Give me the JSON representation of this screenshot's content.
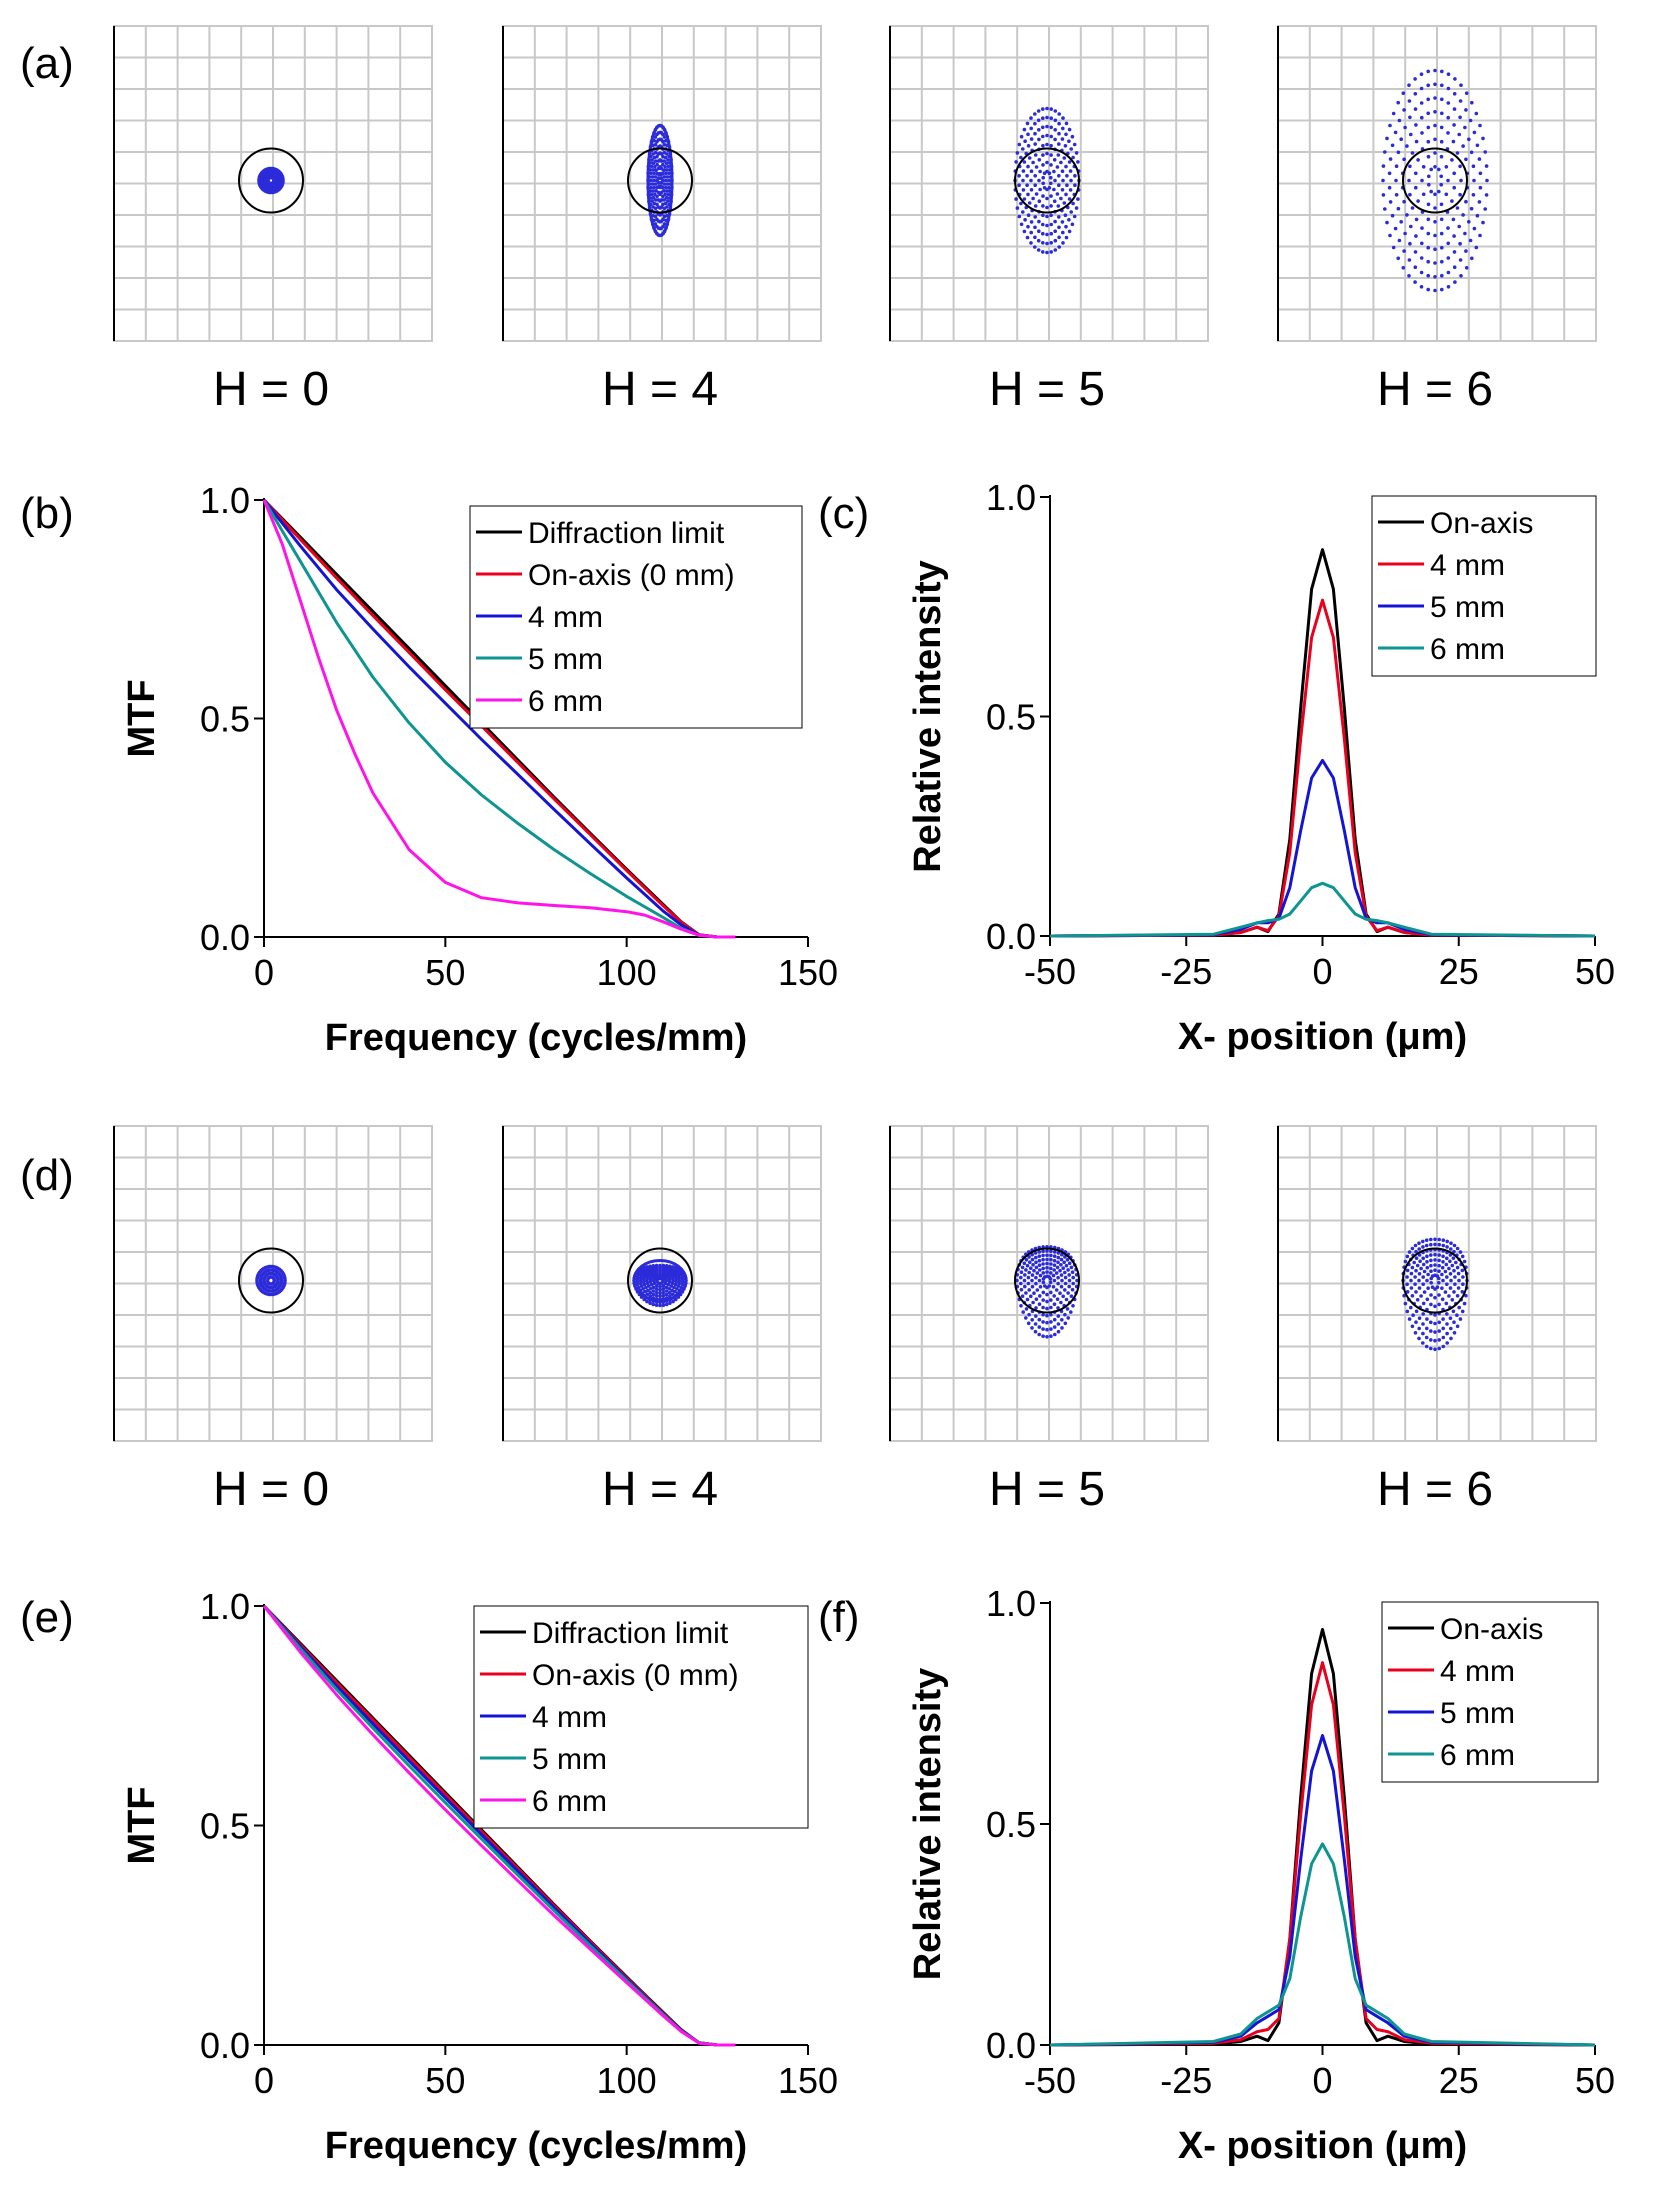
{
  "spot_sets": [
    {
      "panel": "(a)",
      "labels": [
        "H = 0",
        "H = 4",
        "H = 5",
        "H = 6"
      ],
      "spot_color": "#2b2bd9",
      "airy_color": "#000000"
    },
    {
      "panel": "(d)",
      "labels": [
        "H = 0",
        "H = 4",
        "H = 5",
        "H = 6"
      ],
      "spot_color": "#2b2bd9",
      "airy_color": "#000000"
    }
  ],
  "chart_data": [
    {
      "panel": "(b)",
      "type": "line",
      "xlabel": "Frequency (cycles/mm)",
      "ylabel": "MTF",
      "xlim": [
        0,
        150
      ],
      "ylim": [
        0,
        1
      ],
      "xticks": [
        "0",
        "50",
        "100",
        "150"
      ],
      "yticks": [
        "0.0",
        "0.5",
        "1.0"
      ],
      "xtick_values": [
        0,
        50,
        100,
        150
      ],
      "ytick_values": [
        0,
        0.5,
        1
      ],
      "legend_position": "top-right",
      "series": [
        {
          "name": "Diffraction limit",
          "color": "#000000",
          "x": [
            0,
            10,
            20,
            30,
            40,
            50,
            60,
            70,
            80,
            90,
            100,
            110,
            115,
            120,
            125,
            130
          ],
          "y": [
            1.0,
            0.915,
            0.83,
            0.745,
            0.66,
            0.575,
            0.49,
            0.405,
            0.32,
            0.237,
            0.155,
            0.075,
            0.035,
            0.005,
            0,
            0
          ]
        },
        {
          "name": "On-axis (0 mm)",
          "color": "#e8001c",
          "x": [
            0,
            10,
            20,
            30,
            40,
            50,
            60,
            70,
            80,
            90,
            100,
            110,
            115,
            120,
            125,
            130
          ],
          "y": [
            1.0,
            0.91,
            0.822,
            0.736,
            0.651,
            0.566,
            0.483,
            0.399,
            0.316,
            0.234,
            0.152,
            0.072,
            0.034,
            0.005,
            0,
            0
          ]
        },
        {
          "name": "4 mm",
          "color": "#1414d4",
          "x": [
            0,
            10,
            20,
            30,
            40,
            50,
            60,
            70,
            80,
            90,
            100,
            110,
            115,
            120,
            125,
            130
          ],
          "y": [
            1.0,
            0.895,
            0.795,
            0.705,
            0.618,
            0.535,
            0.452,
            0.372,
            0.292,
            0.213,
            0.135,
            0.06,
            0.028,
            0.004,
            0,
            0
          ]
        },
        {
          "name": "5 mm",
          "color": "#0e9491",
          "x": [
            0,
            5,
            10,
            20,
            30,
            40,
            50,
            60,
            70,
            80,
            90,
            100,
            110,
            115,
            120,
            125,
            130
          ],
          "y": [
            1.0,
            0.93,
            0.86,
            0.72,
            0.595,
            0.49,
            0.4,
            0.325,
            0.26,
            0.2,
            0.145,
            0.093,
            0.045,
            0.02,
            0.004,
            0,
            0
          ]
        },
        {
          "name": "6 mm",
          "color": "#ff14e8",
          "x": [
            0,
            5,
            10,
            15,
            20,
            25,
            30,
            40,
            50,
            60,
            70,
            80,
            90,
            100,
            105,
            110,
            115,
            120,
            125,
            130
          ],
          "y": [
            1.0,
            0.9,
            0.77,
            0.64,
            0.52,
            0.42,
            0.33,
            0.2,
            0.125,
            0.09,
            0.078,
            0.072,
            0.067,
            0.058,
            0.05,
            0.035,
            0.018,
            0.004,
            0,
            0
          ]
        }
      ]
    },
    {
      "panel": "(c)",
      "type": "line",
      "xlabel": "X- position (μm)",
      "ylabel": "Relative intensity",
      "xlim": [
        -50,
        50
      ],
      "ylim": [
        0,
        1
      ],
      "xticks": [
        "-50",
        "-25",
        "0",
        "25",
        "50"
      ],
      "yticks": [
        "0.0",
        "0.5",
        "1.0"
      ],
      "xtick_values": [
        -50,
        -25,
        0,
        25,
        50
      ],
      "ytick_values": [
        0,
        0.5,
        1
      ],
      "legend_position": "top-right",
      "series": [
        {
          "name": "On-axis",
          "color": "#000000",
          "x": [
            -50,
            -20,
            -15,
            -12,
            -10,
            -8,
            -6,
            -4,
            -2,
            0,
            2,
            4,
            6,
            8,
            10,
            12,
            15,
            20,
            50
          ],
          "y": [
            0,
            0.002,
            0.008,
            0.02,
            0.01,
            0.05,
            0.22,
            0.52,
            0.79,
            0.88,
            0.79,
            0.52,
            0.22,
            0.05,
            0.01,
            0.02,
            0.008,
            0.002,
            0
          ]
        },
        {
          "name": "4 mm",
          "color": "#e8001c",
          "x": [
            -50,
            -20,
            -15,
            -12,
            -10,
            -8,
            -6,
            -4,
            -2,
            0,
            2,
            4,
            6,
            8,
            10,
            12,
            15,
            20,
            50
          ],
          "y": [
            0,
            0.002,
            0.008,
            0.02,
            0.012,
            0.045,
            0.19,
            0.45,
            0.68,
            0.765,
            0.68,
            0.45,
            0.19,
            0.045,
            0.012,
            0.02,
            0.008,
            0.002,
            0
          ]
        },
        {
          "name": "5 mm",
          "color": "#1414d4",
          "x": [
            -50,
            -20,
            -15,
            -12,
            -10,
            -8,
            -6,
            -4,
            -2,
            0,
            2,
            4,
            6,
            8,
            10,
            12,
            15,
            20,
            50
          ],
          "y": [
            0,
            0.003,
            0.015,
            0.03,
            0.03,
            0.04,
            0.11,
            0.24,
            0.36,
            0.4,
            0.36,
            0.24,
            0.11,
            0.04,
            0.03,
            0.03,
            0.015,
            0.003,
            0
          ]
        },
        {
          "name": "6 mm",
          "color": "#0e9491",
          "x": [
            -50,
            -20,
            -15,
            -12,
            -10,
            -8,
            -6,
            -4,
            -2,
            0,
            2,
            4,
            6,
            8,
            10,
            12,
            15,
            20,
            50
          ],
          "y": [
            0,
            0.004,
            0.02,
            0.03,
            0.035,
            0.038,
            0.05,
            0.08,
            0.11,
            0.12,
            0.11,
            0.08,
            0.05,
            0.038,
            0.035,
            0.03,
            0.02,
            0.004,
            0
          ]
        }
      ]
    },
    {
      "panel": "(e)",
      "type": "line",
      "xlabel": "Frequency (cycles/mm)",
      "ylabel": "MTF",
      "xlim": [
        0,
        150
      ],
      "ylim": [
        0,
        1
      ],
      "xticks": [
        "0",
        "50",
        "100",
        "150"
      ],
      "yticks": [
        "0.0",
        "0.5",
        "1.0"
      ],
      "xtick_values": [
        0,
        50,
        100,
        150
      ],
      "ytick_values": [
        0,
        0.5,
        1
      ],
      "legend_position": "top-right",
      "series": [
        {
          "name": "Diffraction limit",
          "color": "#000000",
          "x": [
            0,
            10,
            20,
            30,
            40,
            50,
            60,
            70,
            80,
            90,
            100,
            110,
            115,
            120,
            125,
            130
          ],
          "y": [
            1.0,
            0.915,
            0.83,
            0.745,
            0.66,
            0.575,
            0.49,
            0.405,
            0.32,
            0.237,
            0.155,
            0.075,
            0.035,
            0.005,
            0,
            0
          ]
        },
        {
          "name": "On-axis (0 mm)",
          "color": "#e8001c",
          "x": [
            0,
            10,
            20,
            30,
            40,
            50,
            60,
            70,
            80,
            90,
            100,
            110,
            115,
            120,
            125,
            130
          ],
          "y": [
            1.0,
            0.912,
            0.826,
            0.741,
            0.656,
            0.571,
            0.486,
            0.402,
            0.318,
            0.235,
            0.153,
            0.073,
            0.034,
            0.005,
            0,
            0
          ]
        },
        {
          "name": "4 mm",
          "color": "#1414d4",
          "x": [
            0,
            10,
            20,
            30,
            40,
            50,
            60,
            70,
            80,
            90,
            100,
            110,
            115,
            120,
            125,
            130
          ],
          "y": [
            1.0,
            0.908,
            0.818,
            0.732,
            0.647,
            0.563,
            0.479,
            0.396,
            0.313,
            0.231,
            0.15,
            0.071,
            0.033,
            0.005,
            0,
            0
          ]
        },
        {
          "name": "5 mm",
          "color": "#0e9491",
          "x": [
            0,
            10,
            20,
            30,
            40,
            50,
            60,
            70,
            80,
            90,
            100,
            110,
            115,
            120,
            125,
            130
          ],
          "y": [
            1.0,
            0.903,
            0.81,
            0.722,
            0.636,
            0.552,
            0.469,
            0.387,
            0.306,
            0.226,
            0.147,
            0.07,
            0.032,
            0.005,
            0,
            0
          ]
        },
        {
          "name": "6 mm",
          "color": "#ff14e8",
          "x": [
            0,
            10,
            20,
            30,
            40,
            50,
            60,
            70,
            80,
            90,
            100,
            110,
            115,
            120,
            125,
            130
          ],
          "y": [
            1.0,
            0.895,
            0.798,
            0.707,
            0.62,
            0.536,
            0.454,
            0.374,
            0.295,
            0.218,
            0.142,
            0.067,
            0.031,
            0.004,
            0,
            0
          ]
        }
      ]
    },
    {
      "panel": "(f)",
      "type": "line",
      "xlabel": "X- position (μm)",
      "ylabel": "Relative intensity",
      "xlim": [
        -50,
        50
      ],
      "ylim": [
        0,
        1
      ],
      "xticks": [
        "-50",
        "-25",
        "0",
        "25",
        "50"
      ],
      "yticks": [
        "0.0",
        "0.5",
        "1.0"
      ],
      "xtick_values": [
        -50,
        -25,
        0,
        25,
        50
      ],
      "ytick_values": [
        0,
        0.5,
        1
      ],
      "legend_position": "top-right",
      "series": [
        {
          "name": "On-axis",
          "color": "#000000",
          "x": [
            -50,
            -20,
            -15,
            -12,
            -10,
            -8,
            -6,
            -4,
            -2,
            0,
            2,
            4,
            6,
            8,
            10,
            12,
            15,
            20,
            50
          ],
          "y": [
            0,
            0.002,
            0.008,
            0.02,
            0.01,
            0.05,
            0.24,
            0.56,
            0.84,
            0.94,
            0.84,
            0.56,
            0.24,
            0.05,
            0.01,
            0.02,
            0.008,
            0.002,
            0
          ]
        },
        {
          "name": "4 mm",
          "color": "#e8001c",
          "x": [
            -50,
            -20,
            -15,
            -12,
            -10,
            -8,
            -6,
            -4,
            -2,
            0,
            2,
            4,
            6,
            8,
            10,
            12,
            15,
            20,
            50
          ],
          "y": [
            0,
            0.004,
            0.012,
            0.03,
            0.035,
            0.06,
            0.24,
            0.52,
            0.77,
            0.865,
            0.77,
            0.52,
            0.24,
            0.06,
            0.035,
            0.03,
            0.012,
            0.004,
            0
          ]
        },
        {
          "name": "5 mm",
          "color": "#1414d4",
          "x": [
            -50,
            -20,
            -15,
            -12,
            -10,
            -8,
            -6,
            -4,
            -2,
            0,
            2,
            4,
            6,
            8,
            10,
            12,
            15,
            20,
            50
          ],
          "y": [
            0,
            0.006,
            0.02,
            0.05,
            0.065,
            0.08,
            0.2,
            0.42,
            0.62,
            0.7,
            0.62,
            0.42,
            0.2,
            0.08,
            0.065,
            0.05,
            0.02,
            0.006,
            0
          ]
        },
        {
          "name": "6 mm",
          "color": "#0e9491",
          "x": [
            -50,
            -20,
            -15,
            -12,
            -10,
            -8,
            -6,
            -4,
            -2,
            0,
            2,
            4,
            6,
            8,
            10,
            12,
            15,
            20,
            50
          ],
          "y": [
            0,
            0.008,
            0.025,
            0.06,
            0.075,
            0.09,
            0.15,
            0.29,
            0.41,
            0.455,
            0.41,
            0.29,
            0.15,
            0.09,
            0.075,
            0.06,
            0.025,
            0.008,
            0
          ]
        }
      ]
    }
  ]
}
